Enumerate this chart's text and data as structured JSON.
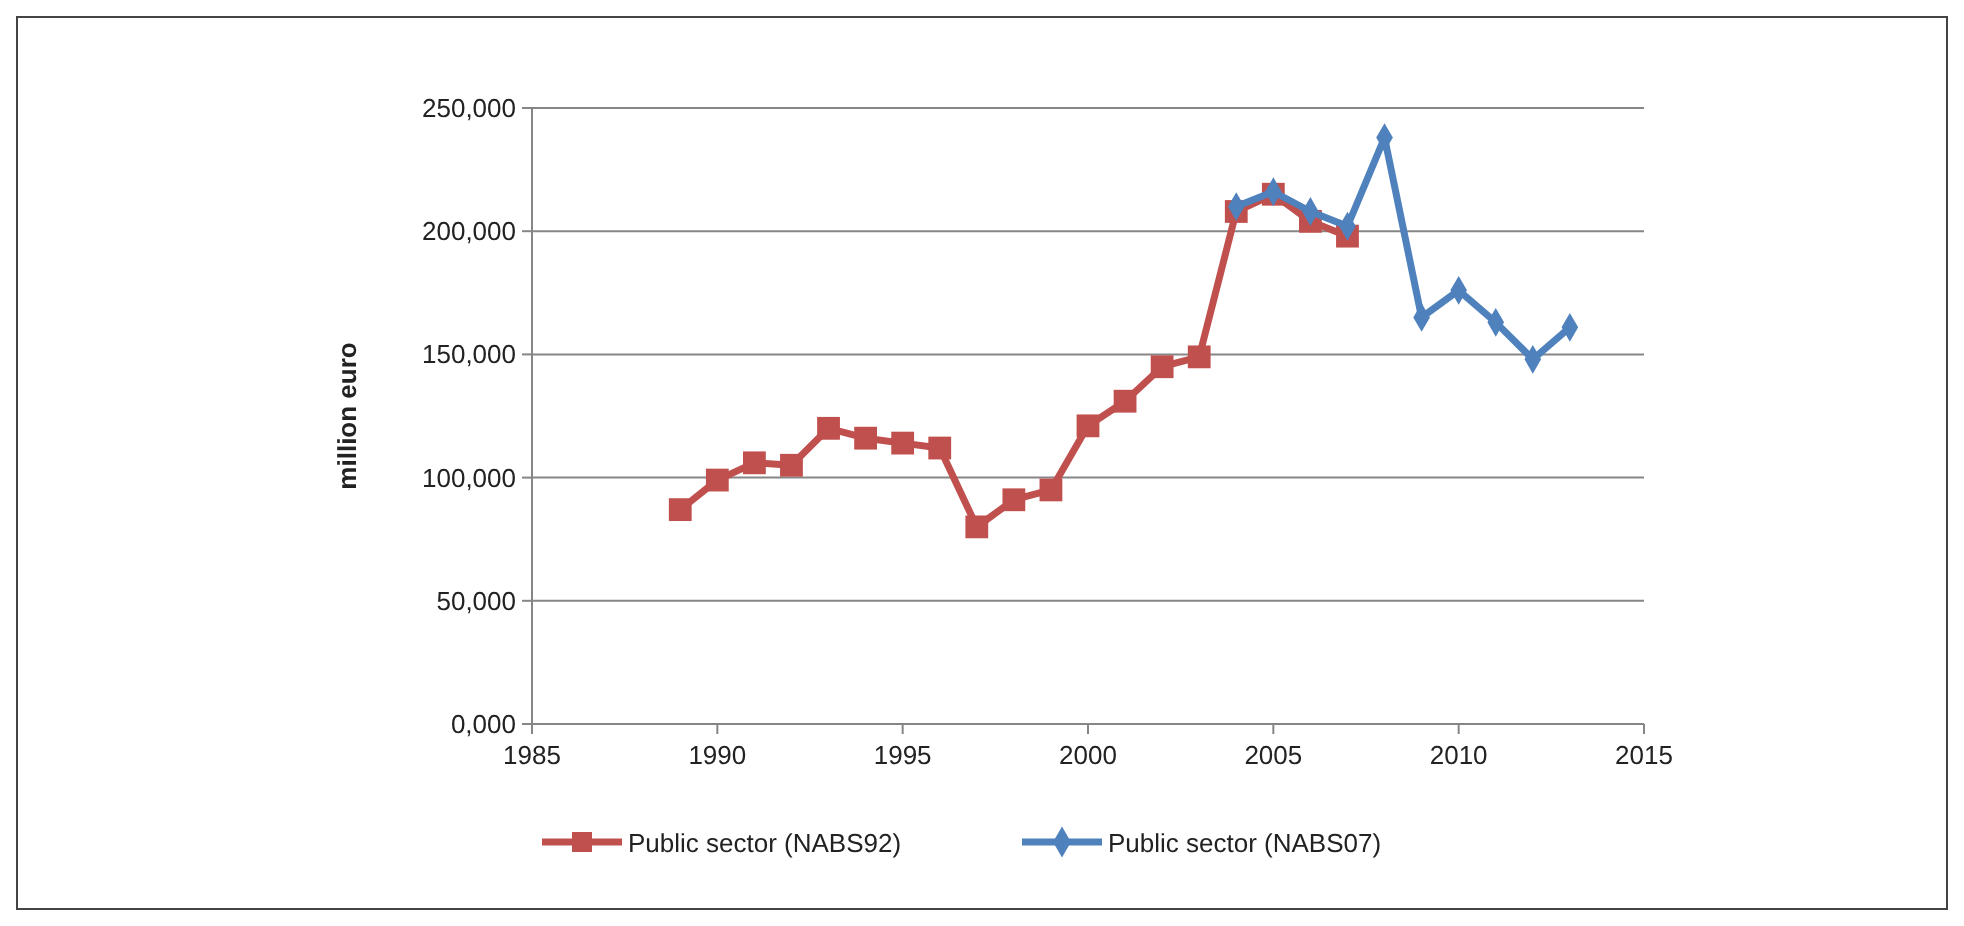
{
  "chart_data": {
    "type": "line",
    "ylabel": "million euro",
    "xlim": [
      1985,
      2015
    ],
    "xticks": [
      1985,
      1990,
      1995,
      2000,
      2005,
      2010,
      2015
    ],
    "ylim": [
      0,
      250000
    ],
    "yticks": [
      {
        "value": 0,
        "label": "0,000"
      },
      {
        "value": 50000,
        "label": "50,000"
      },
      {
        "value": 100000,
        "label": "100,000"
      },
      {
        "value": 150000,
        "label": "150,000"
      },
      {
        "value": 200000,
        "label": "200,000"
      },
      {
        "value": 250000,
        "label": "250,000"
      }
    ],
    "grid": "y",
    "legend": "bottom",
    "series": [
      {
        "name": "Public sector (NABS92)",
        "color": "#c0504d",
        "marker": "square",
        "x": [
          1989,
          1990,
          1991,
          1992,
          1993,
          1994,
          1995,
          1996,
          1997,
          1998,
          1999,
          2000,
          2001,
          2002,
          2003,
          2004,
          2005,
          2006,
          2007
        ],
        "values": [
          87000,
          99000,
          106000,
          105000,
          120000,
          116000,
          114000,
          112000,
          80000,
          91000,
          95000,
          121000,
          131000,
          145000,
          149000,
          208000,
          215000,
          204000,
          198000
        ]
      },
      {
        "name": "Public sector (NABS07)",
        "color": "#4f81bd",
        "marker": "diamond",
        "x": [
          2004,
          2005,
          2006,
          2007,
          2008,
          2009,
          2010,
          2011,
          2012,
          2013
        ],
        "values": [
          210000,
          216000,
          208000,
          202000,
          238000,
          165000,
          176000,
          163000,
          148000,
          161000
        ]
      }
    ]
  }
}
